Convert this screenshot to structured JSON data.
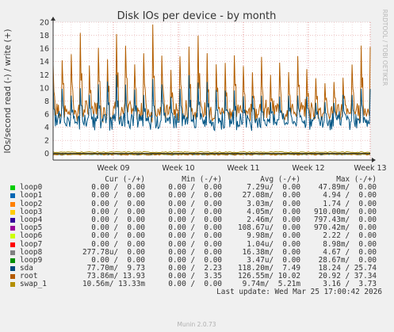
{
  "chart_data": {
    "type": "line",
    "title": "Disk IOs per device - by month",
    "ylabel": "IOs/second read (-) / write (+)",
    "side_label": "RRDTOOL / TOBI OETIKER",
    "ylim": [
      -1,
      20
    ],
    "yticks": [
      0,
      2,
      4,
      6,
      8,
      10,
      12,
      14,
      16,
      18,
      20
    ],
    "xticks": [
      "Week 09",
      "Week 10",
      "Week 11",
      "Week 12",
      "Week 13"
    ],
    "grid": true,
    "series": [
      {
        "name": "root",
        "color": "#b35e00",
        "approx_daily_peaks_write": [
          14,
          15,
          16,
          19,
          14,
          17,
          15,
          19,
          17,
          14,
          16,
          20,
          15,
          13,
          15,
          17,
          19,
          16,
          14,
          14,
          15,
          14,
          13,
          15,
          12,
          14,
          13,
          15,
          13,
          12,
          11,
          11,
          12,
          14,
          17
        ],
        "approx_baseline_write": 6.5
      },
      {
        "name": "sda",
        "color": "#005383",
        "approx_daily_peaks_write": [
          11,
          10,
          9,
          10,
          9,
          11,
          11,
          12,
          11,
          10,
          9,
          12,
          11,
          9,
          10,
          12,
          11,
          11,
          10,
          10,
          10,
          9,
          9,
          9,
          8,
          9,
          9,
          9,
          9,
          8,
          8,
          8,
          9,
          9,
          10
        ],
        "approx_baseline_write": 5.0
      },
      {
        "name": "swap_1",
        "color": "#a68a00",
        "approx_level_write": 0.2,
        "approx_level_read": -0.1
      }
    ]
  },
  "legend": {
    "headers": {
      "cur": "Cur (-/+)",
      "min": "Min (-/+)",
      "avg": "Avg (-/+)",
      "max": "Max (-/+)"
    },
    "rows": [
      {
        "name": "loop0",
        "color": "#00cc00",
        "cur": "0.00 /  0.00",
        "min": "0.00 /  0.00",
        "avg": "7.29u/  0.00",
        "max": "47.89m/  0.00"
      },
      {
        "name": "loop1",
        "color": "#0066b3",
        "cur": "0.00 /  0.00",
        "min": "0.00 /  0.00",
        "avg": "27.08m/  0.00",
        "max": "4.94 /  0.00"
      },
      {
        "name": "loop2",
        "color": "#ff8000",
        "cur": "0.00 /  0.00",
        "min": "0.00 /  0.00",
        "avg": "3.03m/  0.00",
        "max": "1.74 /  0.00"
      },
      {
        "name": "loop3",
        "color": "#ffcc00",
        "cur": "0.00 /  0.00",
        "min": "0.00 /  0.00",
        "avg": "4.05m/  0.00",
        "max": "910.00m/  0.00"
      },
      {
        "name": "loop4",
        "color": "#330099",
        "cur": "0.00 /  0.00",
        "min": "0.00 /  0.00",
        "avg": "2.46m/  0.00",
        "max": "797.43m/  0.00"
      },
      {
        "name": "loop5",
        "color": "#990099",
        "cur": "0.00 /  0.00",
        "min": "0.00 /  0.00",
        "avg": "108.67u/  0.00",
        "max": "970.42m/  0.00"
      },
      {
        "name": "loop6",
        "color": "#ccff00",
        "cur": "0.00 /  0.00",
        "min": "0.00 /  0.00",
        "avg": "9.98m/  0.00",
        "max": "2.22 /  0.00"
      },
      {
        "name": "loop7",
        "color": "#ff0000",
        "cur": "0.00 /  0.00",
        "min": "0.00 /  0.00",
        "avg": "1.04u/  0.00",
        "max": "8.98m/  0.00"
      },
      {
        "name": "loop8",
        "color": "#808080",
        "cur": "277.78u/  0.00",
        "min": "0.00 /  0.00",
        "avg": "16.38m/  0.00",
        "max": "4.67 /  0.00"
      },
      {
        "name": "loop9",
        "color": "#008f00",
        "cur": "0.00 /  0.00",
        "min": "0.00 /  0.00",
        "avg": "3.47u/  0.00",
        "max": "28.67m/  0.00"
      },
      {
        "name": "sda",
        "color": "#00487d",
        "cur": "77.70m/  9.73",
        "min": "0.00 /  2.23",
        "avg": "118.20m/  7.49",
        "max": "18.24 / 25.74"
      },
      {
        "name": "root",
        "color": "#b35a00",
        "cur": "73.86m/ 13.93",
        "min": "0.00 /  3.35",
        "avg": "126.55m/ 10.02",
        "max": "20.92 / 37.34"
      },
      {
        "name": "swap_1",
        "color": "#b38f00",
        "cur": "10.56m/ 13.33m",
        "min": "0.00 /  0.00",
        "avg": "9.74m/  5.21m",
        "max": "3.16 /  3.73"
      }
    ],
    "last_update": "Last update: Wed Mar 25 17:00:42 2026"
  },
  "footer": "Munin 2.0.73"
}
